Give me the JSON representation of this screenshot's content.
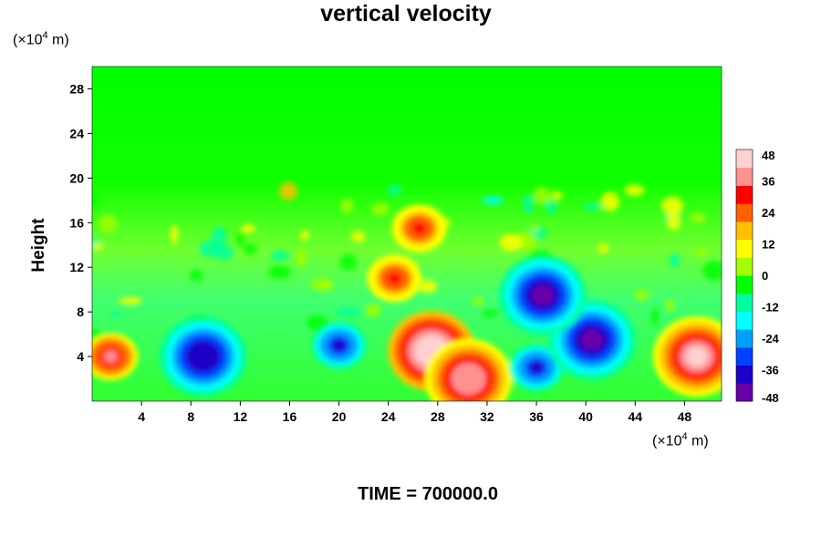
{
  "chart_data": {
    "type": "heatmap",
    "title": "vertical velocity",
    "ylabel": "Height",
    "xlabel": "",
    "x_unit": {
      "prefix": "(×10",
      "exp": "4",
      "suffix": " m)"
    },
    "y_unit": {
      "prefix": "(×10",
      "exp": "4",
      "suffix": " m)"
    },
    "xlim": [
      0,
      51
    ],
    "ylim": [
      0,
      30
    ],
    "x_ticks": [
      4,
      8,
      12,
      16,
      20,
      24,
      28,
      32,
      36,
      40,
      44,
      48
    ],
    "y_ticks": [
      4,
      8,
      12,
      16,
      20,
      24,
      28
    ],
    "colorbar": {
      "min": -48,
      "max": 48,
      "ticks": [
        48,
        36,
        24,
        12,
        0,
        -12,
        -24,
        -36,
        -48
      ],
      "colors": [
        "#6a00a8",
        "#1a00c8",
        "#0040ff",
        "#00a0ff",
        "#00ffff",
        "#00ffa0",
        "#00ff00",
        "#a0ff00",
        "#ffff00",
        "#ffc000",
        "#ff6000",
        "#ff0000",
        "#ff9090",
        "#ffd0d0"
      ]
    },
    "features": [
      {
        "kind": "updraft",
        "x": 1.5,
        "y": 4,
        "value": 36
      },
      {
        "kind": "downdraft",
        "x": 9,
        "y": 4,
        "value": -40
      },
      {
        "kind": "downdraft",
        "x": 20,
        "y": 5,
        "value": -38
      },
      {
        "kind": "updraft",
        "x": 27.5,
        "y": 4.5,
        "value": 48
      },
      {
        "kind": "updraft",
        "x": 30.5,
        "y": 2,
        "value": 40
      },
      {
        "kind": "updraft",
        "x": 24.5,
        "y": 11,
        "value": 30
      },
      {
        "kind": "updraft",
        "x": 26.5,
        "y": 15.5,
        "value": 30
      },
      {
        "kind": "downdraft",
        "x": 36,
        "y": 3,
        "value": -36
      },
      {
        "kind": "downdraft",
        "x": 40.5,
        "y": 5.5,
        "value": -44
      },
      {
        "kind": "downdraft",
        "x": 36.5,
        "y": 9.5,
        "value": -44
      },
      {
        "kind": "updraft",
        "x": 49,
        "y": 4,
        "value": 44
      }
    ]
  },
  "footer": {
    "time_label": "TIME = 700000.0"
  }
}
